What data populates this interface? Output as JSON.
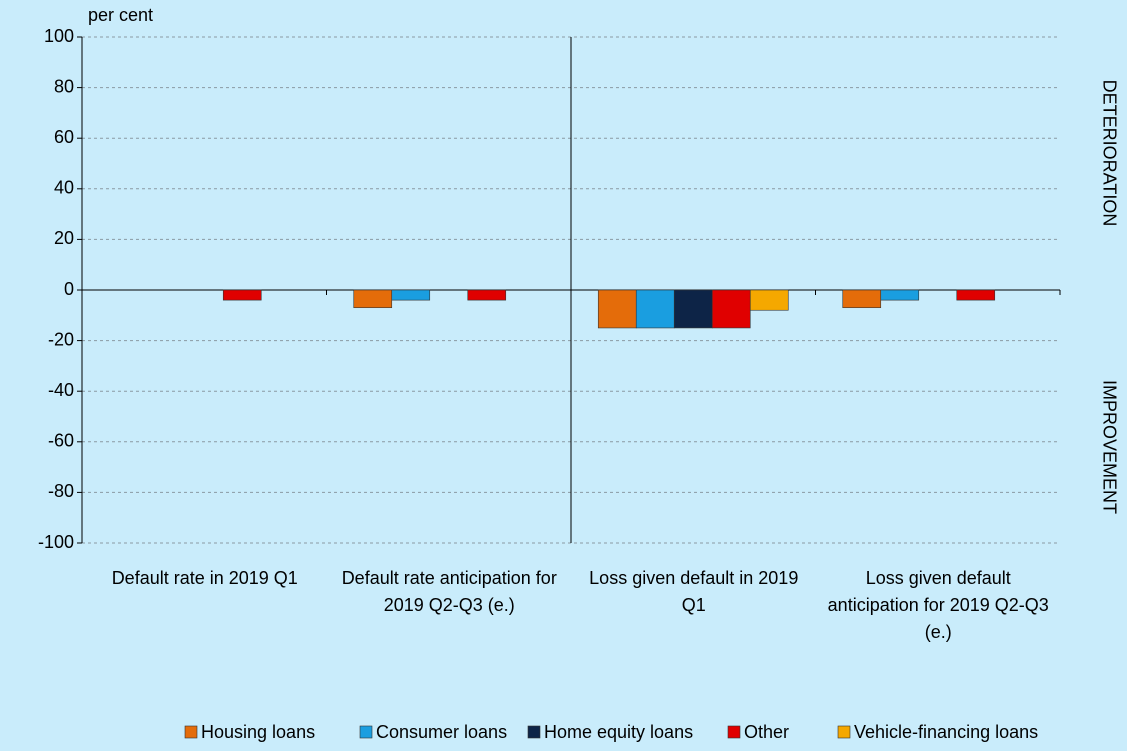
{
  "chart_data": {
    "type": "bar",
    "y_label": "per cent",
    "annotations": [
      "DETERIORATION",
      "IMPROVEMENT"
    ],
    "categories": [
      "Default rate in 2019 Q1",
      "Default rate anticipation for 2019 Q2-Q3 (e.)",
      "Loss given default in 2019 Q1",
      "Loss given default anticipation for 2019 Q2-Q3 (e.)"
    ],
    "series": [
      {
        "name": "Housing loans",
        "color": "#e46c0a",
        "values": [
          0,
          -7,
          -15,
          -7
        ]
      },
      {
        "name": "Consumer loans",
        "color": "#1a9ee0",
        "values": [
          0,
          -4,
          -15,
          -4
        ]
      },
      {
        "name": "Home equity loans",
        "color": "#0d2447",
        "values": [
          0,
          0,
          -15,
          0
        ]
      },
      {
        "name": "Other",
        "color": "#e00000",
        "values": [
          -4,
          -4,
          -15,
          -4
        ]
      },
      {
        "name": "Vehicle-financing loans",
        "color": "#f5a800",
        "values": [
          0,
          0,
          -8,
          0
        ]
      }
    ],
    "ylim": [
      -100,
      100
    ],
    "yticks": [
      -100,
      -80,
      -60,
      -40,
      -20,
      0,
      20,
      40,
      60,
      80,
      100
    ],
    "grid": true
  }
}
